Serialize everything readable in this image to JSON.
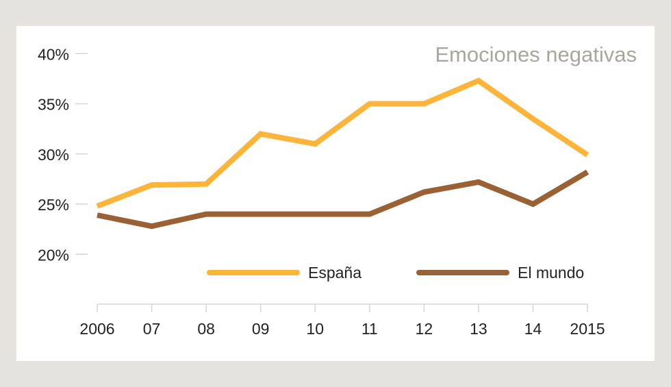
{
  "chart_data": {
    "type": "line",
    "title": "Emociones negativas",
    "xlabel": "",
    "ylabel": "",
    "categories": [
      "2006",
      "07",
      "08",
      "09",
      "10",
      "11",
      "12",
      "13",
      "14",
      "2015"
    ],
    "yticks": [
      20,
      25,
      30,
      35,
      40
    ],
    "ytick_labels": [
      "20%",
      "25%",
      "30%",
      "35%",
      "40%"
    ],
    "ylim": [
      17,
      40
    ],
    "grid": false,
    "legend_position": "bottom-center",
    "series": [
      {
        "name": "España",
        "color": "#fdb43b",
        "values": [
          24.8,
          26.9,
          27.0,
          32.0,
          31.0,
          35.0,
          35.0,
          37.3,
          33.5,
          29.9
        ]
      },
      {
        "name": "El mundo",
        "color": "#9a6134",
        "values": [
          23.9,
          22.8,
          24.0,
          24.0,
          24.0,
          24.0,
          26.2,
          27.2,
          25.0,
          28.2
        ]
      }
    ],
    "colors": {
      "axis": "#d6d6d6",
      "text": "#222222",
      "title": "#a8a6a2"
    }
  }
}
